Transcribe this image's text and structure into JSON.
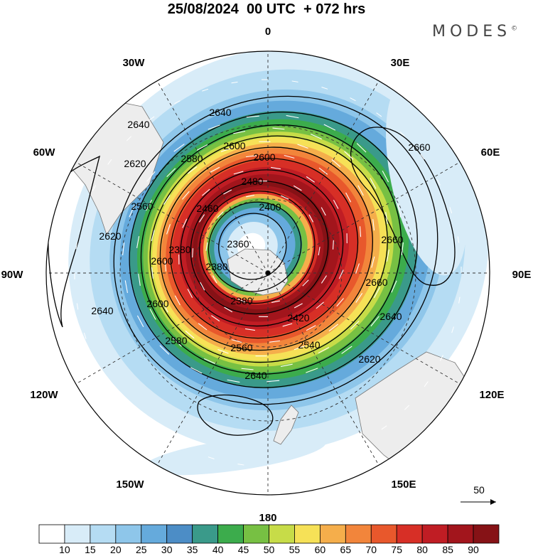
{
  "header": {
    "title": "25/08/2024  00 UTC  + 072 hrs",
    "brand": "MODES",
    "brand_mark": "©"
  },
  "map": {
    "projection": "polar stereographic (south pole)",
    "longitude_labels": [
      {
        "text": "0",
        "lon": 0
      },
      {
        "text": "30E",
        "lon": 30
      },
      {
        "text": "60E",
        "lon": 60
      },
      {
        "text": "90E",
        "lon": 90
      },
      {
        "text": "120E",
        "lon": 120
      },
      {
        "text": "150E",
        "lon": 150
      },
      {
        "text": "180",
        "lon": 180
      },
      {
        "text": "150W",
        "lon": -150
      },
      {
        "text": "120W",
        "lon": -120
      },
      {
        "text": "90W",
        "lon": -90
      },
      {
        "text": "60W",
        "lon": -60
      },
      {
        "text": "30W",
        "lon": -30
      }
    ],
    "contour_labels": [
      "2640",
      "2640",
      "2600",
      "2580",
      "2620",
      "2560",
      "2480",
      "2460",
      "2400",
      "2360",
      "2380",
      "2420",
      "2540",
      "2560",
      "2580",
      "2600",
      "2620",
      "2640",
      "2660",
      "2660",
      "2660",
      "2640",
      "2620",
      "2600",
      "2640",
      "2600",
      "2380",
      "2380"
    ],
    "wind_reference": {
      "label": "50"
    }
  },
  "colorbar": {
    "ticks": [
      "10",
      "15",
      "20",
      "25",
      "30",
      "35",
      "40",
      "45",
      "50",
      "55",
      "60",
      "65",
      "70",
      "75",
      "80",
      "85",
      "90"
    ],
    "colors": [
      "#ffffff",
      "#d8ecf8",
      "#b5dcf3",
      "#8ec6ea",
      "#65aadc",
      "#4c8dc6",
      "#3a9a8a",
      "#3cac4c",
      "#77c043",
      "#c7dc48",
      "#f6e157",
      "#f5ae4b",
      "#f2853b",
      "#e8582c",
      "#d72f26",
      "#c01d24",
      "#a2151c",
      "#861216"
    ]
  }
}
